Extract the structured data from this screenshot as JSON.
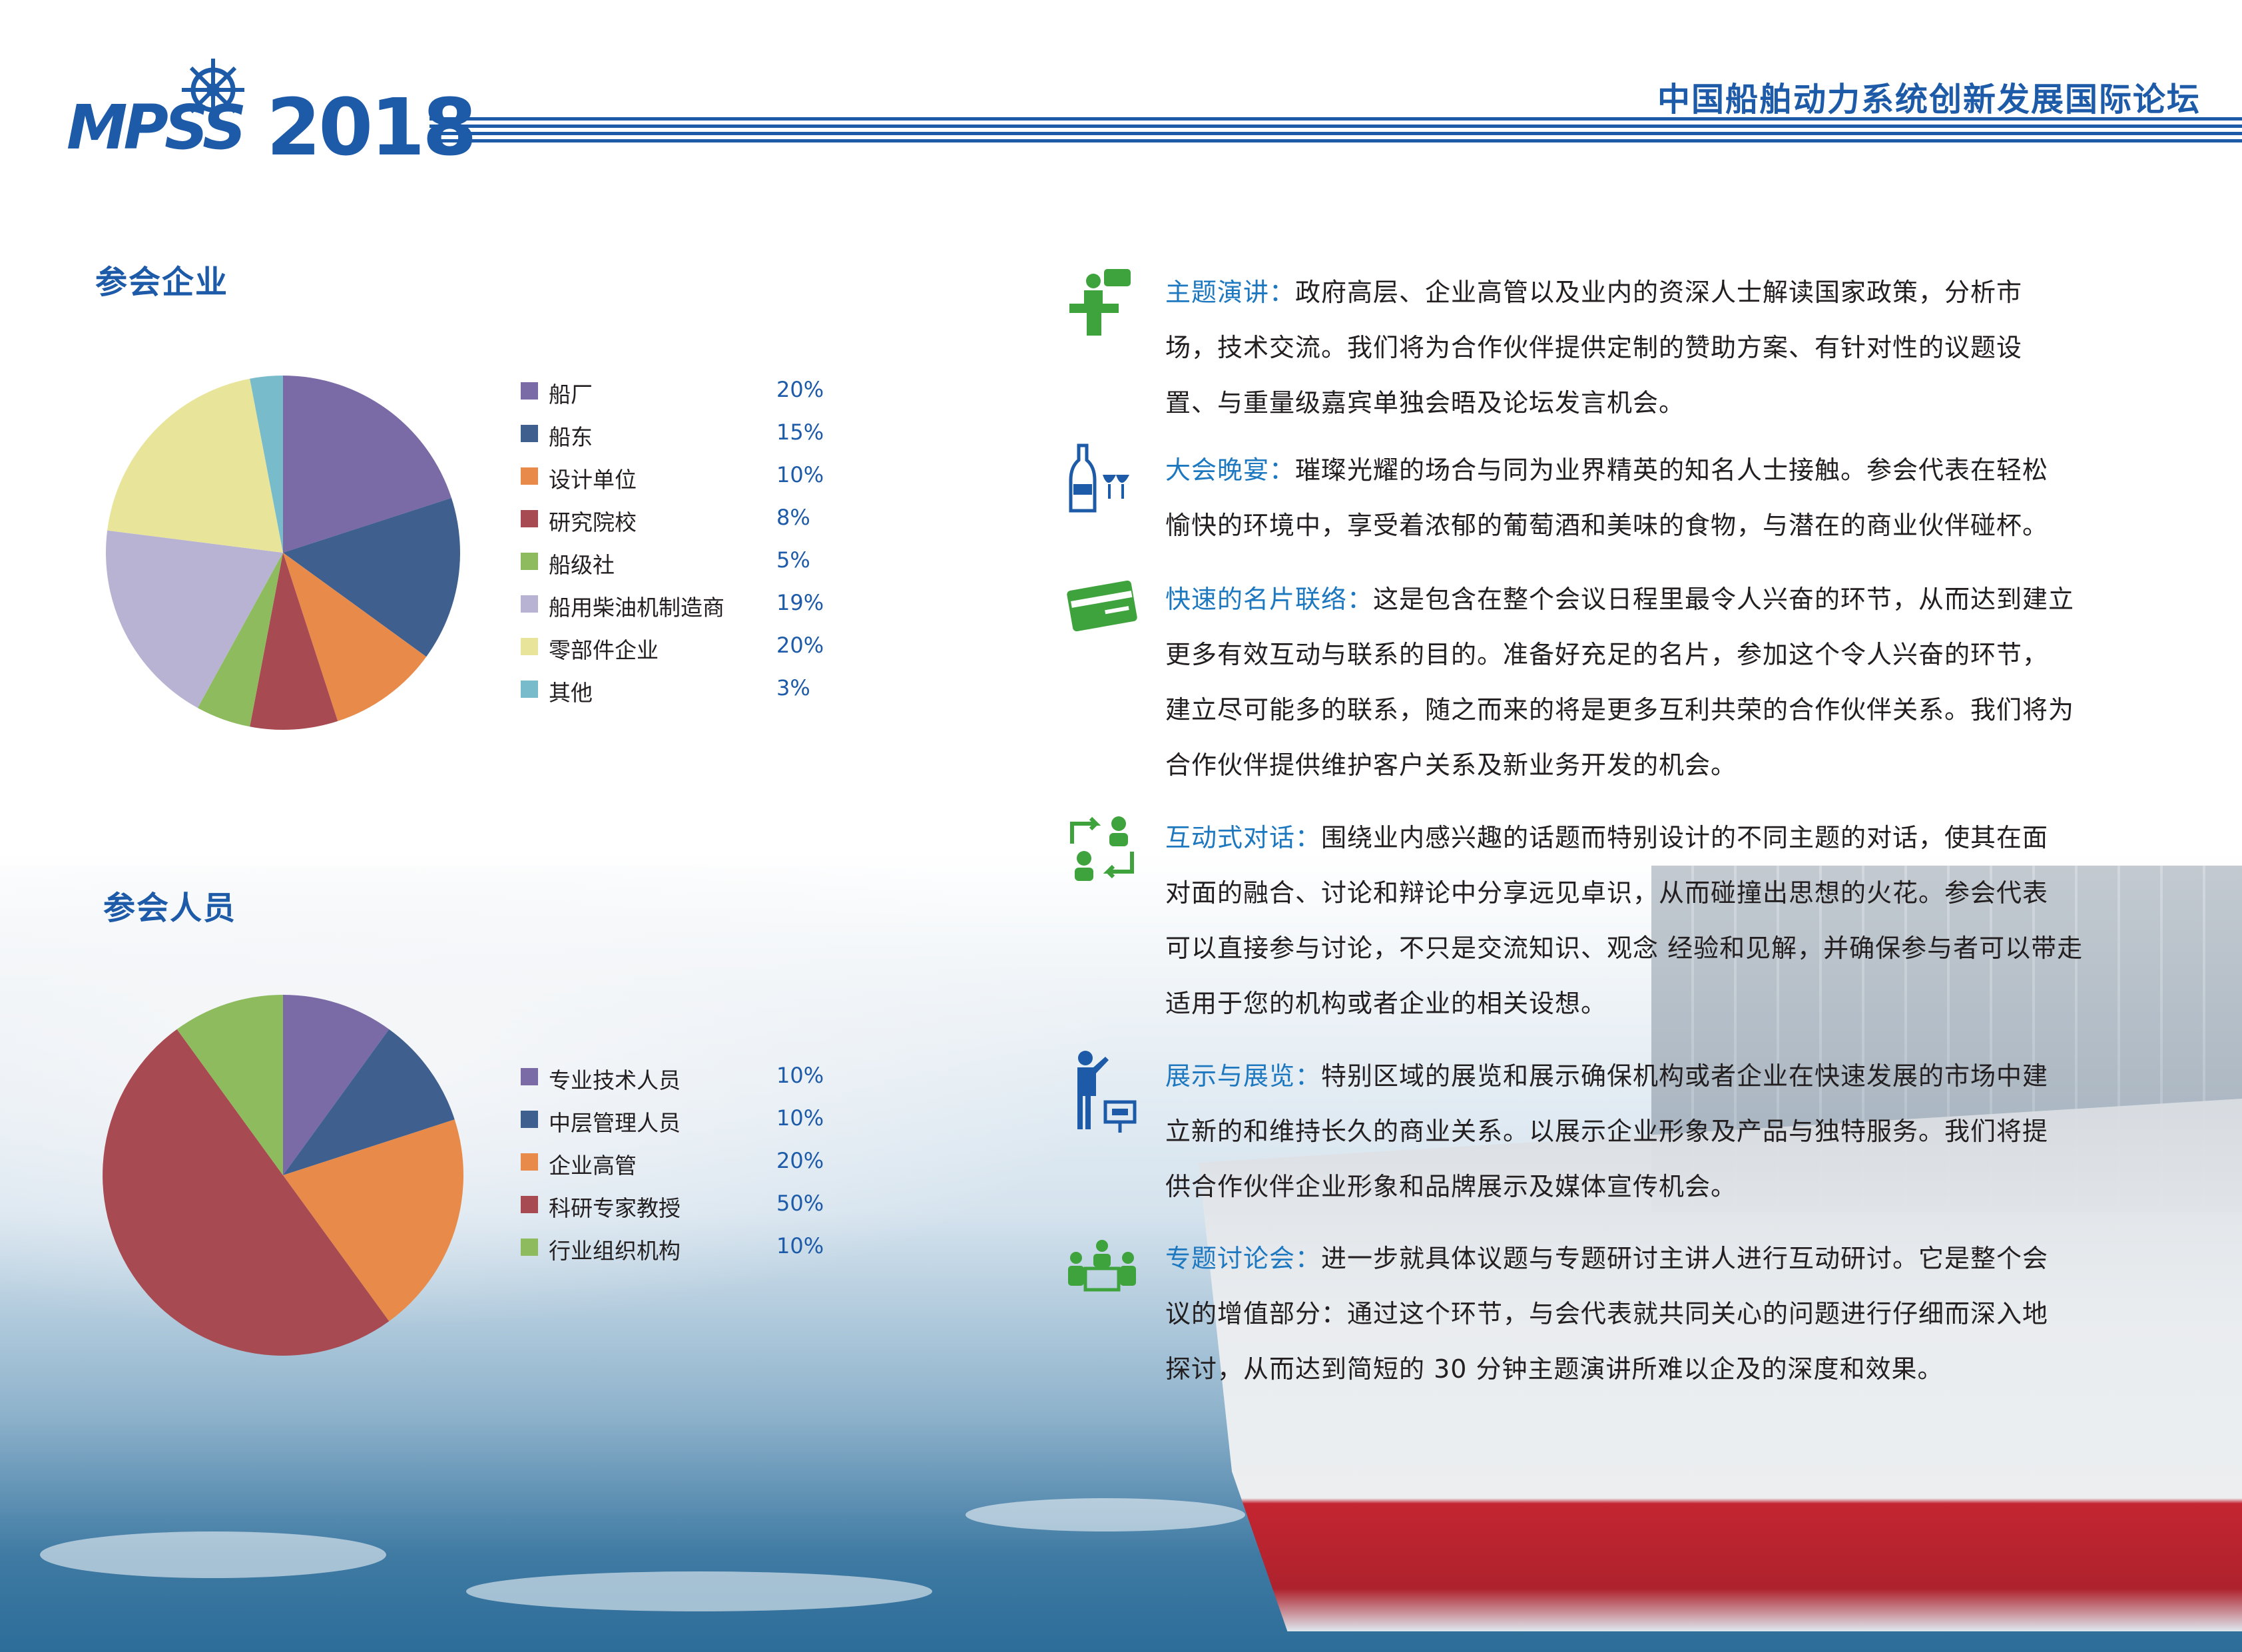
{
  "header": {
    "logo_text": "MPSS",
    "logo_year": "2018",
    "title": "中国船舶动力系统创新发展国际论坛"
  },
  "colors": {
    "brand_blue": "#1d5aa8",
    "accent_blue": "#1d78c0",
    "icon_green": "#3fa33d"
  },
  "sections": {
    "companies_heading": "参会企业",
    "people_heading": "参会人员"
  },
  "chart_data": [
    {
      "type": "pie",
      "title": "参会企业",
      "categories": [
        "船厂",
        "船东",
        "设计单位",
        "研究院校",
        "船级社",
        "船用柴油机制造商",
        "零部件企业",
        "其他"
      ],
      "values": [
        20,
        15,
        10,
        8,
        5,
        19,
        20,
        3
      ],
      "value_labels": [
        "20%",
        "15%",
        "10%",
        "8%",
        "5%",
        "19%",
        "20%",
        "3%"
      ],
      "colors": [
        "#7a6aa6",
        "#3f5f8f",
        "#e88b4a",
        "#a84a52",
        "#8dbb5e",
        "#b9b3d3",
        "#e8e59a",
        "#78bccb"
      ],
      "legend_position": "right"
    },
    {
      "type": "pie",
      "title": "参会人员",
      "categories": [
        "专业技术人员",
        "中层管理人员",
        "企业高管",
        "科研专家教授",
        "行业组织机构"
      ],
      "values": [
        10,
        10,
        20,
        50,
        10
      ],
      "value_labels": [
        "10%",
        "10%",
        "20%",
        "50%",
        "10%"
      ],
      "colors": [
        "#7a6aa6",
        "#3f5f8f",
        "#e88b4a",
        "#a84a52",
        "#8dbb5e"
      ],
      "legend_position": "right"
    }
  ],
  "items": [
    {
      "icon": "speaker-podium-icon",
      "title": "主题演讲：",
      "lines": [
        "政府高层、企业高管以及业内的资深人士解读国家政策，分析市",
        "场，技术交流。我们将为合作伙伴提供定制的赞助方案、有针对性的议题设",
        "置、与重量级嘉宾单独会晤及论坛发言机会。"
      ]
    },
    {
      "icon": "wine-glasses-icon",
      "title": "大会晚宴：",
      "lines": [
        "璀璨光耀的场合与同为业界精英的知名人士接触。参会代表在轻松",
        "愉快的环境中，享受着浓郁的葡萄酒和美味的食物，与潜在的商业伙伴碰杯。"
      ]
    },
    {
      "icon": "business-card-icon",
      "title": "快速的名片联络：",
      "lines": [
        "这是包含在整个会议日程里最令人兴奋的环节，从而达到建立",
        "更多有效互动与联系的目的。准备好充足的名片，参加这个令人兴奋的环节，",
        "建立尽可能多的联系，随之而来的将是更多互利共荣的合作伙伴关系。我们将为",
        "合作伙伴提供维护客户关系及新业务开发的机会。"
      ]
    },
    {
      "icon": "dialogue-exchange-icon",
      "title": "互动式对话：",
      "lines": [
        "围绕业内感兴趣的话题而特别设计的不同主题的对话，使其在面",
        "对面的融合、讨论和辩论中分享远见卓识，从而碰撞出思想的火花。参会代表",
        "可以直接参与讨论，不只是交流知识、观念 经验和见解，并确保参与者可以带走",
        "适用于您的机构或者企业的相关设想。"
      ]
    },
    {
      "icon": "presenter-board-icon",
      "title": "展示与展览：",
      "lines": [
        "特别区域的展览和展示确保机构或者企业在快速发展的市场中建",
        "立新的和维持长久的商业关系。以展示企业形象及产品与独特服务。我们将提",
        "供合作伙伴企业形象和品牌展示及媒体宣传机会。"
      ]
    },
    {
      "icon": "roundtable-meeting-icon",
      "title": "专题讨论会：",
      "lines": [
        "进一步就具体议题与专题研讨主讲人进行互动研讨。它是整个会",
        "议的增值部分：通过这个环节，与会代表就共同关心的问题进行仔细而深入地",
        "探讨，从而达到简短的 30 分钟主题演讲所难以企及的深度和效果。"
      ]
    }
  ]
}
